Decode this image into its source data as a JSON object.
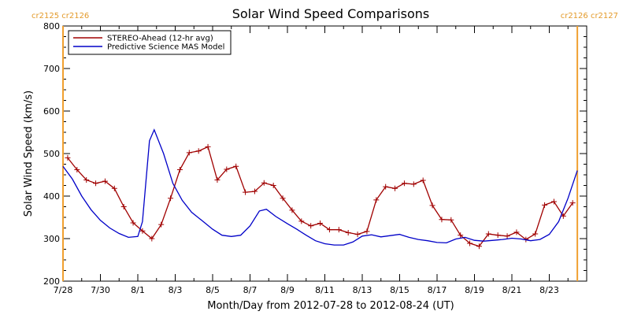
{
  "title": "Solar Wind Speed Comparisons",
  "xlabel": "Month/Day from 2012-07-28 to 2012-08-24 (UT)",
  "ylabel": "Solar Wind Speed (km/s)",
  "carrington": {
    "left": "cr2125 cr2126",
    "right": "cr2126 cr2127"
  },
  "colors": {
    "stereo": "#a00000",
    "model": "#0000c8",
    "carrington_line": "#f0a030"
  },
  "chart_data": {
    "type": "line",
    "title": "Solar Wind Speed Comparisons",
    "xlabel": "Month/Day from 2012-07-28 to 2012-08-24 (UT)",
    "ylabel": "Solar Wind Speed (km/s)",
    "xlim": [
      "2012-07-28",
      "2012-08-25"
    ],
    "ylim": [
      200,
      800
    ],
    "x_ticks": [
      "7/28",
      "7/30",
      "8/1",
      "8/3",
      "8/5",
      "8/7",
      "8/9",
      "8/11",
      "8/13",
      "8/15",
      "8/17",
      "8/19",
      "8/21",
      "8/23"
    ],
    "y_ticks": [
      200,
      300,
      400,
      500,
      600,
      700,
      800
    ],
    "grid": false,
    "legend_position": "top-left",
    "carrington_boundaries": [
      "2012-07-28",
      "2012-08-24 12:00"
    ],
    "series": [
      {
        "name": "STEREO-Ahead (12-hr avg)",
        "markers": "plus",
        "points": [
          [
            "2012-07-28 06:00",
            490
          ],
          [
            "2012-07-28 18:00",
            462
          ],
          [
            "2012-07-29 06:00",
            438
          ],
          [
            "2012-07-29 18:00",
            430
          ],
          [
            "2012-07-30 06:00",
            435
          ],
          [
            "2012-07-30 18:00",
            418
          ],
          [
            "2012-07-31 06:00",
            375
          ],
          [
            "2012-07-31 18:00",
            337
          ],
          [
            "2012-08-01 06:00",
            318
          ],
          [
            "2012-08-01 18:00",
            300
          ],
          [
            "2012-08-02 06:00",
            333
          ],
          [
            "2012-08-02 18:00",
            395
          ],
          [
            "2012-08-03 06:00",
            462
          ],
          [
            "2012-08-03 18:00",
            502
          ],
          [
            "2012-08-04 06:00",
            506
          ],
          [
            "2012-08-04 18:00",
            516
          ],
          [
            "2012-08-05 06:00",
            438
          ],
          [
            "2012-08-05 18:00",
            463
          ],
          [
            "2012-08-06 06:00",
            470
          ],
          [
            "2012-08-06 18:00",
            409
          ],
          [
            "2012-08-07 06:00",
            411
          ],
          [
            "2012-08-07 18:00",
            431
          ],
          [
            "2012-08-08 06:00",
            425
          ],
          [
            "2012-08-08 18:00",
            395
          ],
          [
            "2012-08-09 06:00",
            367
          ],
          [
            "2012-08-09 18:00",
            341
          ],
          [
            "2012-08-10 06:00",
            330
          ],
          [
            "2012-08-10 18:00",
            336
          ],
          [
            "2012-08-11 06:00",
            321
          ],
          [
            "2012-08-11 18:00",
            321
          ],
          [
            "2012-08-12 06:00",
            314
          ],
          [
            "2012-08-12 18:00",
            310
          ],
          [
            "2012-08-13 06:00",
            317
          ],
          [
            "2012-08-13 18:00",
            391
          ],
          [
            "2012-08-14 06:00",
            422
          ],
          [
            "2012-08-14 18:00",
            418
          ],
          [
            "2012-08-15 06:00",
            430
          ],
          [
            "2012-08-15 18:00",
            428
          ],
          [
            "2012-08-16 06:00",
            437
          ],
          [
            "2012-08-16 18:00",
            378
          ],
          [
            "2012-08-17 06:00",
            345
          ],
          [
            "2012-08-17 18:00",
            344
          ],
          [
            "2012-08-18 06:00",
            308
          ],
          [
            "2012-08-18 18:00",
            289
          ],
          [
            "2012-08-19 06:00",
            282
          ],
          [
            "2012-08-19 18:00",
            311
          ],
          [
            "2012-08-20 06:00",
            308
          ],
          [
            "2012-08-20 18:00",
            306
          ],
          [
            "2012-08-21 06:00",
            315
          ],
          [
            "2012-08-21 18:00",
            298
          ],
          [
            "2012-08-22 06:00",
            311
          ],
          [
            "2012-08-22 18:00",
            379
          ],
          [
            "2012-08-23 06:00",
            387
          ],
          [
            "2012-08-23 18:00",
            353
          ],
          [
            "2012-08-24 06:00",
            384
          ]
        ]
      },
      {
        "name": "Predictive Science MAS Model",
        "markers": "none",
        "points": [
          [
            "2012-07-28 00:00",
            470
          ],
          [
            "2012-07-28 12:00",
            440
          ],
          [
            "2012-07-29 00:00",
            400
          ],
          [
            "2012-07-29 12:00",
            368
          ],
          [
            "2012-07-30 00:00",
            343
          ],
          [
            "2012-07-30 12:00",
            325
          ],
          [
            "2012-07-31 00:00",
            312
          ],
          [
            "2012-07-31 12:00",
            303
          ],
          [
            "2012-08-01 00:00",
            305
          ],
          [
            "2012-08-01 06:00",
            340
          ],
          [
            "2012-08-01 15:00",
            530
          ],
          [
            "2012-08-01 21:00",
            556
          ],
          [
            "2012-08-02 09:00",
            500
          ],
          [
            "2012-08-02 21:00",
            430
          ],
          [
            "2012-08-03 09:00",
            390
          ],
          [
            "2012-08-03 21:00",
            362
          ],
          [
            "2012-08-04 12:00",
            340
          ],
          [
            "2012-08-05 00:00",
            322
          ],
          [
            "2012-08-05 12:00",
            308
          ],
          [
            "2012-08-06 00:00",
            305
          ],
          [
            "2012-08-06 12:00",
            308
          ],
          [
            "2012-08-07 00:00",
            330
          ],
          [
            "2012-08-07 12:00",
            365
          ],
          [
            "2012-08-07 21:00",
            369
          ],
          [
            "2012-08-08 09:00",
            352
          ],
          [
            "2012-08-09 00:00",
            335
          ],
          [
            "2012-08-09 12:00",
            322
          ],
          [
            "2012-08-10 00:00",
            308
          ],
          [
            "2012-08-10 12:00",
            295
          ],
          [
            "2012-08-11 00:00",
            288
          ],
          [
            "2012-08-11 12:00",
            285
          ],
          [
            "2012-08-12 00:00",
            285
          ],
          [
            "2012-08-12 12:00",
            292
          ],
          [
            "2012-08-13 00:00",
            306
          ],
          [
            "2012-08-13 12:00",
            309
          ],
          [
            "2012-08-14 00:00",
            304
          ],
          [
            "2012-08-14 12:00",
            307
          ],
          [
            "2012-08-15 00:00",
            310
          ],
          [
            "2012-08-15 12:00",
            303
          ],
          [
            "2012-08-16 00:00",
            298
          ],
          [
            "2012-08-16 12:00",
            295
          ],
          [
            "2012-08-17 00:00",
            291
          ],
          [
            "2012-08-17 12:00",
            290
          ],
          [
            "2012-08-18 00:00",
            299
          ],
          [
            "2012-08-18 12:00",
            303
          ],
          [
            "2012-08-19 00:00",
            296
          ],
          [
            "2012-08-19 12:00",
            294
          ],
          [
            "2012-08-20 00:00",
            296
          ],
          [
            "2012-08-20 12:00",
            298
          ],
          [
            "2012-08-21 00:00",
            301
          ],
          [
            "2012-08-21 12:00",
            299
          ],
          [
            "2012-08-22 00:00",
            295
          ],
          [
            "2012-08-22 12:00",
            298
          ],
          [
            "2012-08-23 00:00",
            310
          ],
          [
            "2012-08-23 12:00",
            340
          ],
          [
            "2012-08-24 00:00",
            395
          ],
          [
            "2012-08-24 12:00",
            460
          ]
        ]
      }
    ]
  }
}
